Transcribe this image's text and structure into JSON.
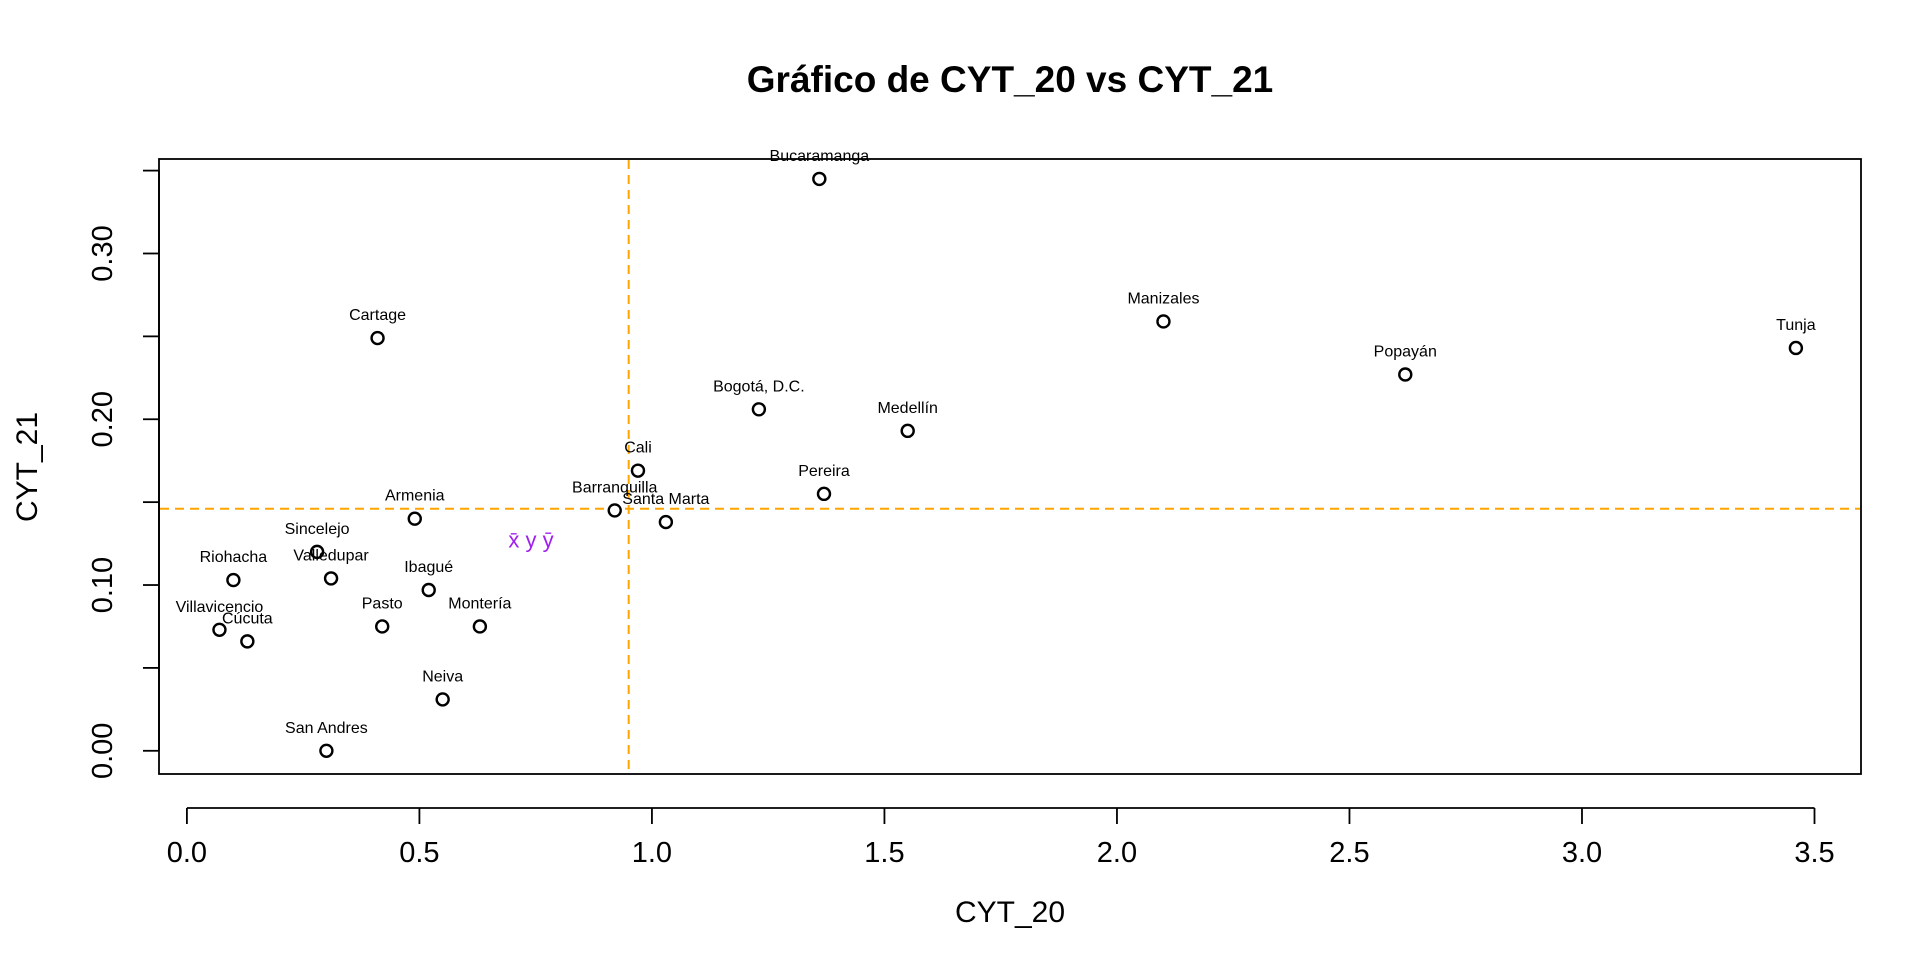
{
  "chart_data": {
    "type": "scatter",
    "title": "Gráfico de CYT_20 vs CYT_21",
    "xlabel": "CYT_20",
    "ylabel": "CYT_21",
    "xlim": [
      -0.06,
      3.6
    ],
    "ylim": [
      -0.014,
      0.357
    ],
    "x_ticks": [
      0.0,
      0.5,
      1.0,
      1.5,
      2.0,
      2.5,
      3.0,
      3.5
    ],
    "x_tick_labels": [
      "0.0",
      "0.5",
      "1.0",
      "1.5",
      "2.0",
      "2.5",
      "3.0",
      "3.5"
    ],
    "y_ticks": [
      0.0,
      0.05,
      0.1,
      0.15,
      0.2,
      0.25,
      0.3,
      0.35
    ],
    "y_tick_labels": [
      "0.00",
      "",
      "0.10",
      "",
      "0.20",
      "",
      "0.30",
      ""
    ],
    "points": [
      {
        "label": "Bucaramanga",
        "x": 1.36,
        "y": 0.345
      },
      {
        "label": "Cartage",
        "x": 0.41,
        "y": 0.249
      },
      {
        "label": "Manizales",
        "x": 2.1,
        "y": 0.259
      },
      {
        "label": "Tunja",
        "x": 3.46,
        "y": 0.243
      },
      {
        "label": "Popayán",
        "x": 2.62,
        "y": 0.227
      },
      {
        "label": "Bogotá, D.C.",
        "x": 1.23,
        "y": 0.206
      },
      {
        "label": "Medellín",
        "x": 1.55,
        "y": 0.193
      },
      {
        "label": "Cali",
        "x": 0.97,
        "y": 0.169
      },
      {
        "label": "Pereira",
        "x": 1.37,
        "y": 0.155
      },
      {
        "label": "Barranquilla",
        "x": 0.92,
        "y": 0.145
      },
      {
        "label": "Santa Marta",
        "x": 1.03,
        "y": 0.138
      },
      {
        "label": "Armenia",
        "x": 0.49,
        "y": 0.14
      },
      {
        "label": "Sincelejo",
        "x": 0.28,
        "y": 0.12
      },
      {
        "label": "Valledupar",
        "x": 0.31,
        "y": 0.104
      },
      {
        "label": "Riohacha",
        "x": 0.1,
        "y": 0.103
      },
      {
        "label": "Ibagué",
        "x": 0.52,
        "y": 0.097
      },
      {
        "label": "Villavicencio",
        "x": 0.07,
        "y": 0.073
      },
      {
        "label": "Cúcuta",
        "x": 0.13,
        "y": 0.066
      },
      {
        "label": "Pasto",
        "x": 0.42,
        "y": 0.075
      },
      {
        "label": "Montería",
        "x": 0.63,
        "y": 0.075
      },
      {
        "label": "Neiva",
        "x": 0.55,
        "y": 0.031
      },
      {
        "label": "San Andres",
        "x": 0.3,
        "y": 0.0
      }
    ],
    "mean_lines": {
      "x": 0.95,
      "y": 0.146,
      "color": "#FFA500"
    },
    "annotation": {
      "text": "x̄ y ȳ",
      "x": 0.74,
      "y": 0.126,
      "color": "#A020F0"
    }
  }
}
